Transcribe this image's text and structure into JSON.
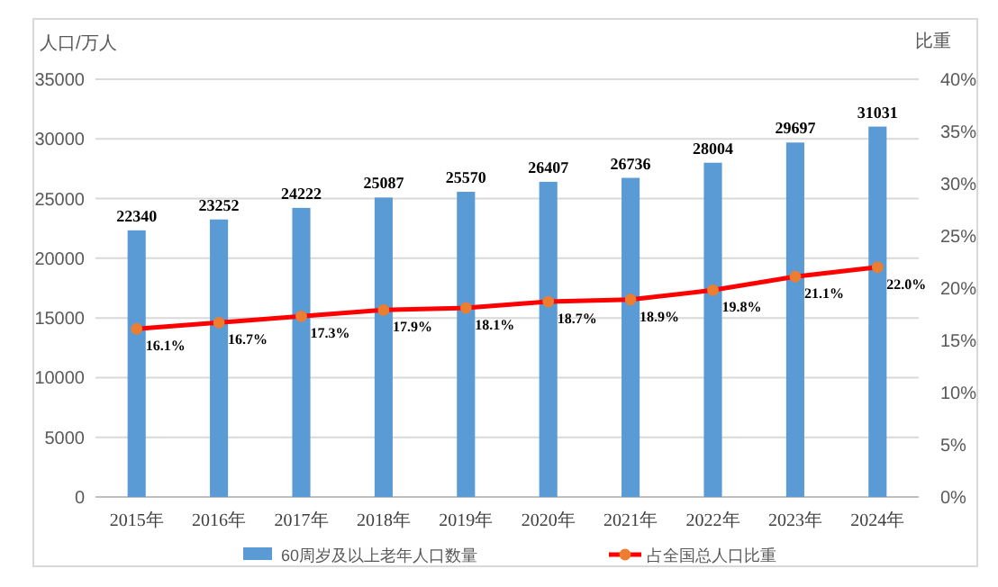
{
  "chart_data": {
    "type": "bar",
    "ylabel": "人口/万人",
    "y2label": "比重",
    "categories": [
      "2015年",
      "2016年",
      "2017年",
      "2018年",
      "2019年",
      "2020年",
      "2021年",
      "2022年",
      "2023年",
      "2024年"
    ],
    "series": [
      {
        "name": "60周岁及以上老年人口数量",
        "color": "#5b9bd5",
        "values": [
          22340,
          23252,
          24222,
          25087,
          25570,
          26407,
          26736,
          28004,
          29697,
          31031
        ],
        "data_labels": true
      },
      {
        "name": "占全国总人口比重",
        "type": "line",
        "axis": "y2",
        "color": "#ff0000",
        "marker": "circle",
        "colors": [
          "#ed7d31",
          "#ed7d31",
          "#ed7d31",
          "#ed7d31",
          "#ed7d31",
          "#ed7d31",
          "#ed7d31",
          "#ed7d31",
          "#ed7d31",
          "#ed7d31"
        ],
        "values": [
          16.1,
          16.7,
          17.3,
          17.9,
          18.1,
          18.7,
          18.9,
          19.8,
          21.1,
          22.0
        ],
        "value_labels": [
          "16.1%",
          "16.7%",
          "17.3%",
          "17.9%",
          "18.1%",
          "18.7%",
          "18.9%",
          "19.8%",
          "21.1%",
          "22.0%"
        ]
      }
    ],
    "ylim": [
      0,
      35000
    ],
    "yticks": [
      0,
      5000,
      10000,
      15000,
      20000,
      25000,
      30000,
      35000
    ],
    "y2lim": [
      0,
      40
    ],
    "y2ticks": [
      {
        "value": 0,
        "label": "0%"
      },
      {
        "value": 5,
        "label": "5%"
      },
      {
        "value": 10,
        "label": "10%"
      },
      {
        "value": 15,
        "label": "15%"
      },
      {
        "value": 20,
        "label": "20%"
      },
      {
        "value": 25,
        "label": "25%"
      },
      {
        "value": 30,
        "label": "30%"
      },
      {
        "value": 35,
        "label": "35%"
      },
      {
        "value": 40,
        "label": "40%"
      }
    ],
    "grid": "y",
    "legend": "bottom"
  }
}
